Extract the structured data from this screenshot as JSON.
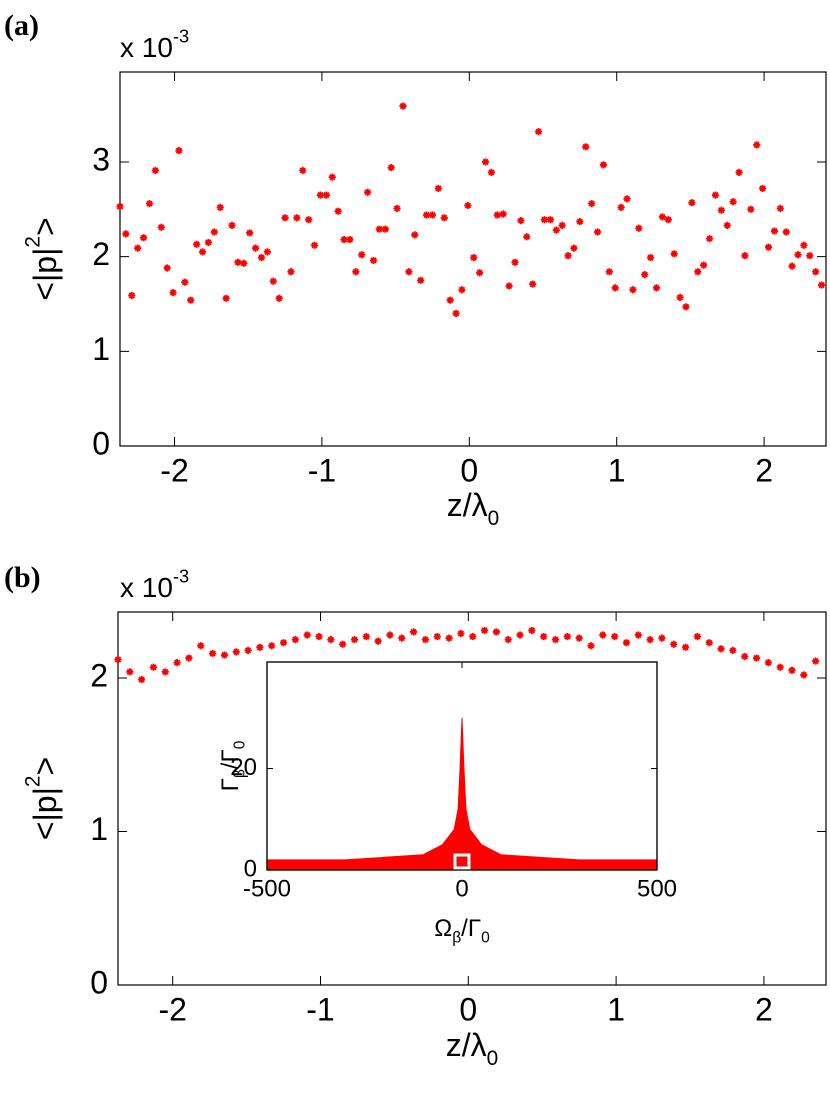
{
  "chart_data": [
    {
      "type": "scatter",
      "panel_label": "(a)",
      "exponent_label": [
        {
          "text": "x 10"
        },
        {
          "text": "-3",
          "sup": true
        }
      ],
      "ylabel": [
        {
          "text": "<|p|"
        },
        {
          "text": "2",
          "sup": true
        },
        {
          "text": ">"
        }
      ],
      "xlabel": [
        {
          "text": "z/λ"
        },
        {
          "text": "0",
          "sub": true
        }
      ],
      "x": [
        -2.37,
        -2.33,
        -2.29,
        -2.25,
        -2.21,
        -2.17,
        -2.13,
        -2.09,
        -2.05,
        -2.01,
        -1.97,
        -1.93,
        -1.89,
        -1.85,
        -1.81,
        -1.77,
        -1.73,
        -1.69,
        -1.65,
        -1.61,
        -1.57,
        -1.53,
        -1.49,
        -1.45,
        -1.41,
        -1.37,
        -1.33,
        -1.29,
        -1.25,
        -1.21,
        -1.17,
        -1.13,
        -1.09,
        -1.05,
        -1.01,
        -0.97,
        -0.93,
        -0.89,
        -0.85,
        -0.81,
        -0.77,
        -0.73,
        -0.69,
        -0.65,
        -0.61,
        -0.57,
        -0.53,
        -0.49,
        -0.45,
        -0.41,
        -0.37,
        -0.33,
        -0.29,
        -0.25,
        -0.21,
        -0.17,
        -0.13,
        -0.09,
        -0.05,
        -0.01,
        0.03,
        0.07,
        0.11,
        0.15,
        0.19,
        0.23,
        0.27,
        0.31,
        0.35,
        0.39,
        0.43,
        0.47,
        0.51,
        0.55,
        0.59,
        0.63,
        0.67,
        0.71,
        0.75,
        0.79,
        0.83,
        0.87,
        0.91,
        0.95,
        0.99,
        1.03,
        1.07,
        1.11,
        1.15,
        1.19,
        1.23,
        1.27,
        1.31,
        1.35,
        1.39,
        1.43,
        1.47,
        1.51,
        1.55,
        1.59,
        1.63,
        1.67,
        1.71,
        1.75,
        1.79,
        1.83,
        1.87,
        1.91,
        1.95,
        1.99,
        2.03,
        2.07,
        2.11,
        2.15,
        2.19,
        2.23,
        2.27,
        2.31,
        2.35,
        2.39
      ],
      "series": [
        {
          "color": "#ff0000",
          "values": [
            2.53,
            2.24,
            1.59,
            2.09,
            2.2,
            2.56,
            2.91,
            2.31,
            1.88,
            1.62,
            3.12,
            1.73,
            1.54,
            2.13,
            2.05,
            2.15,
            2.26,
            2.52,
            1.56,
            2.33,
            1.94,
            1.93,
            2.25,
            2.09,
            1.99,
            2.05,
            1.74,
            1.56,
            2.41,
            1.84,
            2.41,
            2.91,
            2.39,
            2.12,
            2.65,
            2.65,
            2.84,
            2.48,
            2.18,
            2.18,
            1.84,
            2.02,
            2.68,
            1.96,
            2.29,
            2.29,
            2.94,
            2.51,
            3.59,
            1.84,
            2.23,
            1.75,
            2.44,
            2.44,
            2.72,
            2.41,
            1.54,
            1.4,
            1.65,
            2.54,
            1.99,
            1.83,
            3.0,
            2.89,
            2.44,
            2.45,
            1.69,
            1.94,
            2.38,
            2.21,
            1.71,
            3.32,
            2.39,
            2.39,
            2.28,
            2.33,
            2.01,
            2.09,
            2.37,
            3.16,
            2.56,
            2.26,
            2.97,
            1.84,
            1.67,
            2.52,
            2.61,
            1.65,
            2.3,
            1.81,
            1.99,
            1.67,
            2.42,
            2.39,
            2.03,
            1.57,
            1.47,
            2.57,
            1.84,
            1.91,
            2.19,
            2.65,
            2.49,
            2.33,
            2.58,
            2.89,
            2.01,
            2.5,
            3.18,
            2.72,
            2.1,
            2.27,
            2.51,
            2.26,
            1.9,
            2.02,
            2.12,
            2.01,
            1.84,
            1.7
          ]
        }
      ],
      "xlim": [
        -2.37,
        2.42
      ],
      "ylim": [
        0,
        3.95
      ],
      "xticks": [
        -2,
        -1,
        0,
        1,
        2
      ],
      "yticks": [
        0,
        1,
        2,
        3
      ]
    },
    {
      "type": "scatter",
      "panel_label": "(b)",
      "exponent_label": [
        {
          "text": "x 10"
        },
        {
          "text": "-3",
          "sup": true
        }
      ],
      "ylabel": [
        {
          "text": "<|p|"
        },
        {
          "text": "2",
          "sup": true
        },
        {
          "text": ">"
        }
      ],
      "xlabel": [
        {
          "text": "z/λ"
        },
        {
          "text": "0",
          "sub": true
        }
      ],
      "x": [
        -2.37,
        -2.29,
        -2.21,
        -2.13,
        -2.05,
        -1.97,
        -1.89,
        -1.81,
        -1.73,
        -1.65,
        -1.57,
        -1.49,
        -1.41,
        -1.33,
        -1.25,
        -1.17,
        -1.09,
        -1.01,
        -0.93,
        -0.85,
        -0.77,
        -0.69,
        -0.61,
        -0.53,
        -0.45,
        -0.37,
        -0.29,
        -0.21,
        -0.13,
        -0.05,
        0.03,
        0.11,
        0.19,
        0.27,
        0.35,
        0.43,
        0.51,
        0.59,
        0.67,
        0.75,
        0.83,
        0.91,
        0.99,
        1.07,
        1.15,
        1.23,
        1.31,
        1.39,
        1.47,
        1.55,
        1.63,
        1.71,
        1.79,
        1.87,
        1.95,
        2.03,
        2.11,
        2.19,
        2.27,
        2.35
      ],
      "series": [
        {
          "color": "#ff0000",
          "values": [
            2.12,
            2.04,
            1.99,
            2.07,
            2.04,
            2.1,
            2.13,
            2.21,
            2.16,
            2.15,
            2.17,
            2.18,
            2.2,
            2.21,
            2.23,
            2.25,
            2.28,
            2.27,
            2.25,
            2.22,
            2.25,
            2.27,
            2.24,
            2.28,
            2.26,
            2.3,
            2.25,
            2.27,
            2.26,
            2.29,
            2.27,
            2.31,
            2.3,
            2.25,
            2.28,
            2.31,
            2.27,
            2.25,
            2.27,
            2.26,
            2.21,
            2.28,
            2.27,
            2.23,
            2.28,
            2.25,
            2.26,
            2.22,
            2.2,
            2.27,
            2.23,
            2.19,
            2.18,
            2.14,
            2.13,
            2.1,
            2.07,
            2.05,
            2.02,
            2.11
          ]
        }
      ],
      "xlim": [
        -2.37,
        2.42
      ],
      "ylim": [
        0,
        2.43
      ],
      "xticks": [
        -2,
        -1,
        0,
        1,
        2
      ],
      "yticks": [
        0,
        1,
        2
      ]
    },
    {
      "type": "area",
      "ylabel": [
        {
          "text": "Γ"
        },
        {
          "text": "β",
          "sub": true
        },
        {
          "text": "/Γ"
        },
        {
          "text": "0",
          "sub": true
        }
      ],
      "xlabel": [
        {
          "text": "Ω"
        },
        {
          "text": "β",
          "sub": true
        },
        {
          "text": "/Γ"
        },
        {
          "text": "0",
          "sub": true
        }
      ],
      "x": [
        -500,
        -300,
        -100,
        -50,
        -20,
        -10,
        -5,
        0,
        5,
        10,
        20,
        50,
        100,
        300,
        500
      ],
      "series": [
        {
          "color": "#ff0000",
          "values": [
            2,
            2,
            3,
            5,
            8,
            12,
            20,
            30,
            20,
            12,
            8,
            5,
            3,
            2,
            2
          ]
        }
      ],
      "xlim": [
        -500,
        500
      ],
      "ylim": [
        0,
        41
      ],
      "xticks": [
        -500,
        0,
        500
      ],
      "yticks": [
        0,
        20
      ]
    }
  ]
}
